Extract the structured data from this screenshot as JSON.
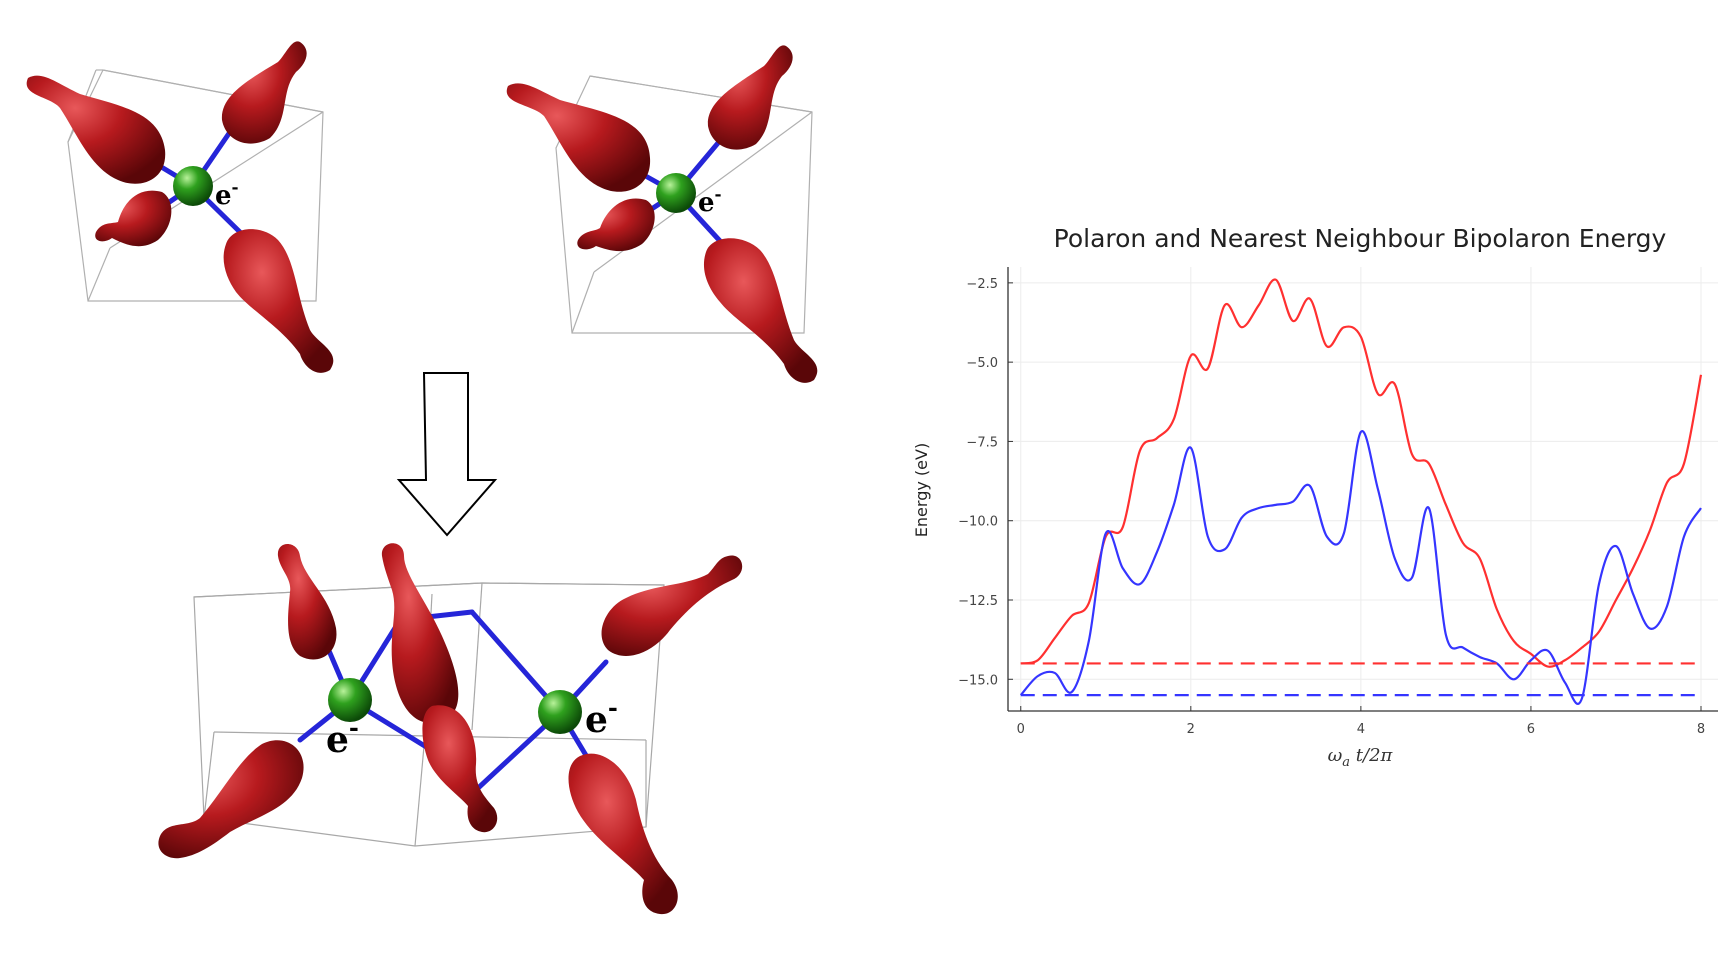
{
  "diagram": {
    "electron_label": "e",
    "electron_charge": "-"
  },
  "chart_data": {
    "type": "line",
    "title": "Polaron and Nearest Neighbour Bipolaron Energy",
    "ylabel": "Energy (eV)",
    "xlabel": "ω_a t/2π",
    "xlim": [
      -0.15,
      8.2
    ],
    "ylim": [
      -16.0,
      -2.0
    ],
    "xticks": [
      0,
      2,
      4,
      6,
      8
    ],
    "xtick_labels": [
      "0",
      "2",
      "4",
      "6",
      "8"
    ],
    "yticks": [
      -2.5,
      -5.0,
      -7.5,
      -10.0,
      -12.5,
      -15.0
    ],
    "ytick_labels": [
      "−2.5",
      "−5.0",
      "−7.5",
      "−10.0",
      "−12.5",
      "−15.0"
    ],
    "grid": true,
    "series": [
      {
        "color": "#ff3030",
        "style": "solid",
        "x": [
          0,
          0.2,
          0.4,
          0.6,
          0.8,
          1.0,
          1.2,
          1.4,
          1.6,
          1.8,
          2.0,
          2.2,
          2.4,
          2.6,
          2.8,
          3.0,
          3.2,
          3.4,
          3.6,
          3.8,
          4.0,
          4.2,
          4.4,
          4.6,
          4.8,
          5.0,
          5.2,
          5.4,
          5.6,
          5.8,
          6.0,
          6.2,
          6.4,
          6.6,
          6.8,
          7.0,
          7.2,
          7.4,
          7.6,
          7.8,
          8.0
        ],
        "y": [
          -14.5,
          -14.4,
          -13.7,
          -13.0,
          -12.6,
          -10.5,
          -10.2,
          -7.8,
          -7.4,
          -6.8,
          -4.8,
          -5.2,
          -3.2,
          -3.9,
          -3.2,
          -2.4,
          -3.7,
          -3.0,
          -4.5,
          -3.9,
          -4.2,
          -6.0,
          -5.7,
          -7.9,
          -8.2,
          -9.5,
          -10.7,
          -11.2,
          -12.8,
          -13.8,
          -14.2,
          -14.6,
          -14.4,
          -14.0,
          -13.5,
          -12.5,
          -11.5,
          -10.3,
          -8.8,
          -8.2,
          -5.4
        ]
      },
      {
        "color": "#3535ff",
        "style": "solid",
        "x": [
          0,
          0.2,
          0.4,
          0.6,
          0.8,
          1.0,
          1.2,
          1.4,
          1.6,
          1.8,
          2.0,
          2.2,
          2.4,
          2.6,
          2.8,
          3.0,
          3.2,
          3.4,
          3.6,
          3.8,
          4.0,
          4.2,
          4.4,
          4.6,
          4.8,
          5.0,
          5.2,
          5.4,
          5.6,
          5.8,
          6.0,
          6.2,
          6.4,
          6.6,
          6.8,
          7.0,
          7.2,
          7.4,
          7.6,
          7.8,
          8.0
        ],
        "y": [
          -15.5,
          -14.9,
          -14.8,
          -15.4,
          -13.8,
          -10.4,
          -11.5,
          -12.0,
          -11.0,
          -9.5,
          -7.7,
          -10.5,
          -10.9,
          -9.9,
          -9.6,
          -9.5,
          -9.4,
          -8.9,
          -10.5,
          -10.4,
          -7.2,
          -9.0,
          -11.2,
          -11.8,
          -9.6,
          -13.6,
          -14.0,
          -14.3,
          -14.5,
          -15.0,
          -14.4,
          -14.1,
          -15.1,
          -15.6,
          -12.0,
          -10.8,
          -12.3,
          -13.4,
          -12.7,
          -10.5,
          -9.6
        ]
      },
      {
        "color": "#ff3030",
        "style": "dashed",
        "x": [
          0,
          8
        ],
        "y": [
          -14.5,
          -14.5
        ]
      },
      {
        "color": "#3535ff",
        "style": "dashed",
        "x": [
          0,
          8
        ],
        "y": [
          -15.5,
          -15.5
        ]
      }
    ]
  }
}
